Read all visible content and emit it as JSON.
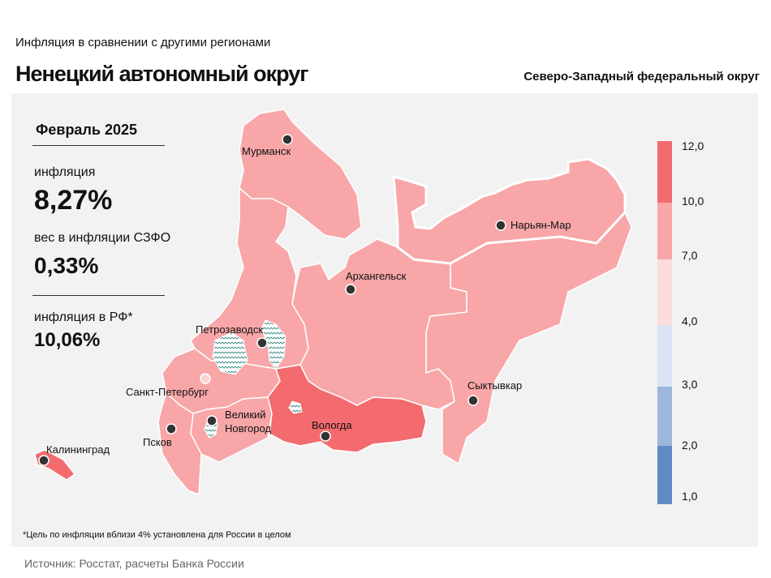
{
  "header": {
    "subtitle": "Инфляция  в сравнении  с другими  регионами",
    "title": "Ненецкий автономный округ",
    "district": "Северо-Западный федеральный округ"
  },
  "info": {
    "period": "Февраль 2025",
    "inflation_label": "инфляция",
    "inflation_value": "8,27%",
    "weight_label": "вес в инфляции  СЗФО",
    "weight_value": "0,33%",
    "rf_label": "инфляция  в РФ*",
    "rf_value": "10,06%"
  },
  "colors": {
    "band_10_12": "#f36b6e",
    "band_7_10": "#f8a6a8",
    "band_4_7": "#fadcdd",
    "band_3_4": "#dae3f3",
    "band_2_3": "#9db6db",
    "band_1_2": "#5e8bc6",
    "panel": "#f2f2f2"
  },
  "legend": {
    "ticks": [
      "12,0",
      "10,0",
      "7,0",
      "4,0",
      "3,0",
      "2,0",
      "1,0"
    ]
  },
  "cities": {
    "murmansk": "Мурманск",
    "naryan_mar": "Нарьян-Мар",
    "arkhangelsk": "Архангельск",
    "petrozavodsk": "Петрозаводск",
    "spb": "Санкт-Петербург",
    "novgorod_1": "Великий",
    "novgorod_2": "Новгород",
    "vologda": "Вологда",
    "syktyvkar": "Сыктывкар",
    "pskov": "Псков",
    "kaliningrad": "Калининград"
  },
  "regions": [
    {
      "name": "Мурманская область",
      "band": "7-10"
    },
    {
      "name": "Республика Карелия",
      "band": "7-10"
    },
    {
      "name": "Архангельская область",
      "band": "7-10"
    },
    {
      "name": "Ненецкий автономный округ",
      "band": "7-10"
    },
    {
      "name": "Республика Коми",
      "band": "7-10"
    },
    {
      "name": "Вологодская область",
      "band": "10-12"
    },
    {
      "name": "Ленинградская область",
      "band": "7-10"
    },
    {
      "name": "Новгородская область",
      "band": "7-10"
    },
    {
      "name": "Псковская область",
      "band": "7-10"
    },
    {
      "name": "Калининградская область",
      "band": "10-12"
    }
  ],
  "footnote": "*Цель по инфляции вблизи 4% установлена для России в целом",
  "source": "Источник:  Росстат,  расчеты  Банка  России"
}
